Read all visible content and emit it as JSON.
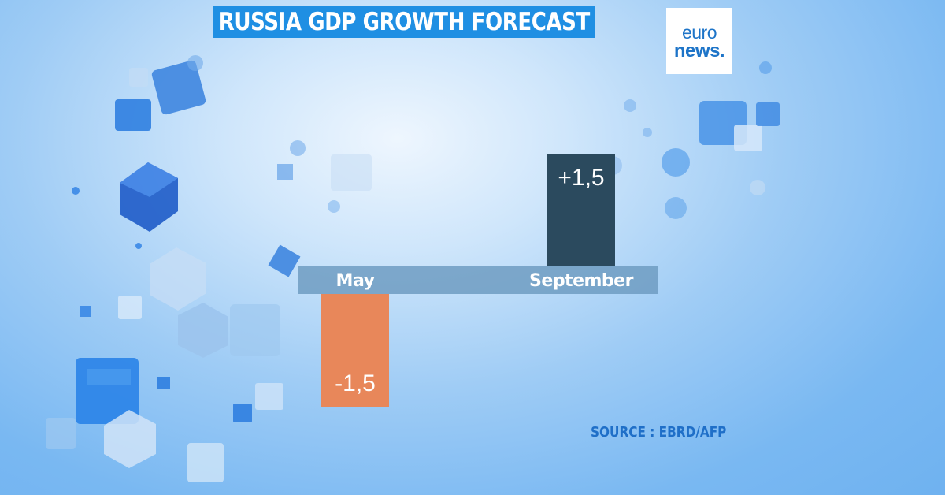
{
  "header": {
    "title": "RUSSIA GDP GROWTH FORECAST"
  },
  "logo": {
    "line1": "euro",
    "line2": "news."
  },
  "source": "SOURCE : EBRD/AFP",
  "colors": {
    "negative": "#e8875a",
    "positive": "#2b4a5e",
    "axis_band": "#6f9cc2",
    "accent": "#1f8fe3"
  },
  "chart_data": {
    "type": "bar",
    "title": "RUSSIA GDP GROWTH FORECAST",
    "xlabel": "",
    "ylabel": "",
    "categories": [
      "May",
      "September"
    ],
    "values": [
      -1.5,
      1.5
    ],
    "value_labels": [
      "-1,5",
      "+1,5"
    ],
    "ylim": [
      -1.5,
      1.5
    ],
    "grid": false,
    "legend": "none"
  }
}
